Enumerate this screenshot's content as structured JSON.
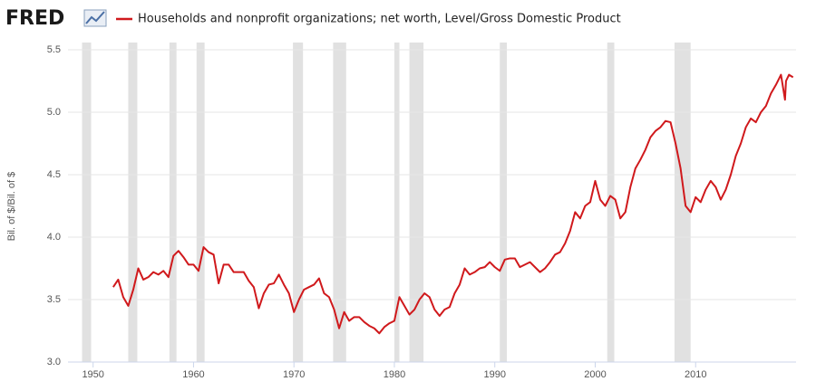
{
  "chart_data": {
    "type": "line",
    "brand": "FRED",
    "ylabel": "Bil. of $/Bil. of $",
    "xlim": [
      1947.5,
      2020
    ],
    "ylim": [
      3.0,
      5.5
    ],
    "xticks": [
      1950,
      1960,
      1970,
      1980,
      1990,
      2000,
      2010
    ],
    "yticks": [
      {
        "value": 3,
        "label": "3.0"
      },
      3.5,
      {
        "value": 4,
        "label": "4.0"
      },
      4.5,
      {
        "value": 5,
        "label": "5.0"
      },
      5.5
    ],
    "grid": true,
    "recessions": [
      [
        1948.9,
        1949.8
      ],
      [
        1953.5,
        1954.4
      ],
      [
        1957.6,
        1958.3
      ],
      [
        1960.3,
        1961.1
      ],
      [
        1969.9,
        1970.9
      ],
      [
        1973.9,
        1975.2
      ],
      [
        1980.0,
        1980.5
      ],
      [
        1981.5,
        1982.9
      ],
      [
        1990.5,
        1991.2
      ],
      [
        2001.2,
        2001.9
      ],
      [
        2007.9,
        2009.5
      ]
    ],
    "recession_color": "#e1e1e1",
    "x": [
      1952.0,
      1952.5,
      1953.0,
      1953.5,
      1954.0,
      1954.5,
      1955.0,
      1955.5,
      1956.0,
      1956.5,
      1957.0,
      1957.5,
      1958.0,
      1958.5,
      1959.0,
      1959.5,
      1960.0,
      1960.5,
      1961.0,
      1961.5,
      1962.0,
      1962.5,
      1963.0,
      1963.5,
      1964.0,
      1964.5,
      1965.0,
      1965.5,
      1966.0,
      1966.5,
      1967.0,
      1967.5,
      1968.0,
      1968.5,
      1969.0,
      1969.5,
      1970.0,
      1970.5,
      1971.0,
      1971.5,
      1972.0,
      1972.5,
      1973.0,
      1973.5,
      1974.0,
      1974.5,
      1975.0,
      1975.5,
      1976.0,
      1976.5,
      1977.0,
      1977.5,
      1978.0,
      1978.5,
      1979.0,
      1979.5,
      1980.0,
      1980.5,
      1981.0,
      1981.5,
      1982.0,
      1982.5,
      1983.0,
      1983.5,
      1984.0,
      1984.5,
      1985.0,
      1985.5,
      1986.0,
      1986.5,
      1987.0,
      1987.5,
      1988.0,
      1988.5,
      1989.0,
      1989.5,
      1990.0,
      1990.5,
      1991.0,
      1991.5,
      1992.0,
      1992.5,
      1993.0,
      1993.5,
      1994.0,
      1994.5,
      1995.0,
      1995.5,
      1996.0,
      1996.5,
      1997.0,
      1997.5,
      1998.0,
      1998.5,
      1999.0,
      1999.5,
      2000.0,
      2000.5,
      2001.0,
      2001.5,
      2002.0,
      2002.5,
      2003.0,
      2003.5,
      2004.0,
      2004.5,
      2005.0,
      2005.5,
      2006.0,
      2006.5,
      2007.0,
      2007.5,
      2008.0,
      2008.5,
      2009.0,
      2009.5,
      2010.0,
      2010.5,
      2011.0,
      2011.5,
      2012.0,
      2012.5,
      2013.0,
      2013.5,
      2014.0,
      2014.5,
      2015.0,
      2015.5,
      2016.0,
      2016.5,
      2017.0,
      2017.5,
      2018.0,
      2018.5,
      2018.9,
      2019.0,
      2019.3,
      2019.7
    ],
    "series": [
      {
        "name": "Households and nonprofit organizations; net worth, Level/Gross Domestic Product",
        "color": "#d0191c",
        "values": [
          3.6,
          3.66,
          3.52,
          3.45,
          3.58,
          3.75,
          3.66,
          3.68,
          3.72,
          3.7,
          3.73,
          3.68,
          3.85,
          3.89,
          3.84,
          3.78,
          3.78,
          3.73,
          3.92,
          3.88,
          3.86,
          3.63,
          3.78,
          3.78,
          3.72,
          3.72,
          3.72,
          3.65,
          3.6,
          3.43,
          3.55,
          3.62,
          3.63,
          3.7,
          3.62,
          3.55,
          3.4,
          3.5,
          3.58,
          3.6,
          3.62,
          3.67,
          3.55,
          3.52,
          3.42,
          3.27,
          3.4,
          3.33,
          3.36,
          3.36,
          3.32,
          3.29,
          3.27,
          3.23,
          3.28,
          3.31,
          3.33,
          3.52,
          3.45,
          3.38,
          3.42,
          3.5,
          3.55,
          3.52,
          3.42,
          3.37,
          3.42,
          3.44,
          3.55,
          3.62,
          3.75,
          3.7,
          3.72,
          3.75,
          3.76,
          3.8,
          3.76,
          3.73,
          3.82,
          3.83,
          3.83,
          3.76,
          3.78,
          3.8,
          3.76,
          3.72,
          3.75,
          3.8,
          3.86,
          3.88,
          3.95,
          4.05,
          4.2,
          4.15,
          4.25,
          4.28,
          4.45,
          4.3,
          4.25,
          4.33,
          4.3,
          4.15,
          4.2,
          4.4,
          4.55,
          4.62,
          4.7,
          4.8,
          4.85,
          4.88,
          4.93,
          4.92,
          4.75,
          4.55,
          4.25,
          4.2,
          4.32,
          4.28,
          4.38,
          4.45,
          4.4,
          4.3,
          4.38,
          4.5,
          4.65,
          4.75,
          4.88,
          4.95,
          4.92,
          5.0,
          5.05,
          5.15,
          5.22,
          5.3,
          5.1,
          5.25,
          5.3,
          5.28
        ]
      }
    ]
  }
}
